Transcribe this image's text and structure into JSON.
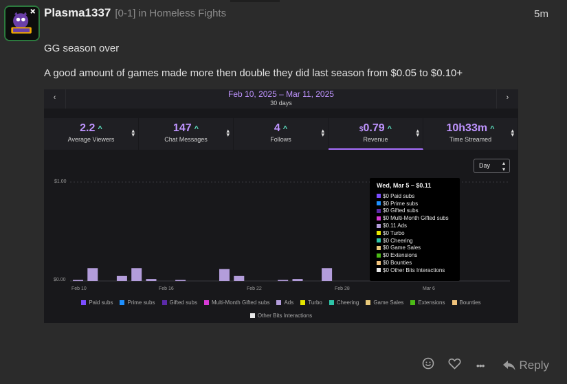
{
  "post": {
    "username": "Plasma1337",
    "flair": "[0-1] in Homeless Fights",
    "time": "5m",
    "paragraph1": "GG season over",
    "paragraph2": "A good amount of games made more then double they did last season from $0.05 to $0.10+"
  },
  "dashboard": {
    "date_range": "Feb 10, 2025 – Mar 11, 2025",
    "days": "30 days",
    "prev_icon": "chevron-left-icon",
    "next_icon": "chevron-right-icon",
    "stats": [
      {
        "value": "2.2",
        "currency": "",
        "label": "Average Viewers",
        "active": false
      },
      {
        "value": "147",
        "currency": "",
        "label": "Chat Messages",
        "active": false
      },
      {
        "value": "4",
        "currency": "",
        "label": "Follows",
        "active": false
      },
      {
        "value": "0.79",
        "currency": "$",
        "label": "Revenue",
        "active": true
      },
      {
        "value": "10h33m",
        "currency": "",
        "label": "Time Streamed",
        "active": false
      }
    ],
    "up_arrow": "^",
    "period_select": "Day"
  },
  "chart_data": {
    "type": "bar",
    "ylim": [
      0,
      1.0
    ],
    "y_ticks": [
      "$1.00",
      "$0.00"
    ],
    "x_ticks": [
      "Feb 10",
      "Feb 16",
      "Feb 22",
      "Feb 28",
      "Mar 6"
    ],
    "categories": [
      "Feb 10",
      "Feb 11",
      "Feb 12",
      "Feb 13",
      "Feb 14",
      "Feb 15",
      "Feb 16",
      "Feb 17",
      "Feb 18",
      "Feb 19",
      "Feb 20",
      "Feb 21",
      "Feb 22",
      "Feb 23",
      "Feb 24",
      "Feb 25",
      "Feb 26",
      "Feb 27",
      "Feb 28",
      "Mar 1",
      "Mar 2",
      "Mar 3",
      "Mar 4",
      "Mar 5",
      "Mar 6",
      "Mar 7",
      "Mar 8",
      "Mar 9",
      "Mar 10",
      "Mar 11"
    ],
    "series": [
      {
        "name": "Ads",
        "values": [
          0.01,
          0.13,
          0,
          0.05,
          0.13,
          0.02,
          0,
          0.01,
          0,
          0,
          0.12,
          0.05,
          0,
          0,
          0.01,
          0.02,
          0,
          0.13,
          0,
          0,
          0,
          0,
          0,
          0.11,
          0,
          0,
          0,
          0,
          0,
          0
        ]
      }
    ],
    "bar_color": "#b39ddb"
  },
  "tooltip": {
    "title": "Wed, Mar 5 – $0.11",
    "rows": [
      {
        "text": "$0 Paid subs",
        "color": "#7b4dff"
      },
      {
        "text": "$0 Prime subs",
        "color": "#1e90ff"
      },
      {
        "text": "$0 Gifted subs",
        "color": "#5b2aa8"
      },
      {
        "text": "$0 Multi-Month Gifted subs",
        "color": "#d63ad6"
      },
      {
        "text": "$0.11 Ads",
        "color": "#b39ddb"
      },
      {
        "text": "$0 Turbo",
        "color": "#e5e500"
      },
      {
        "text": "$0 Cheering",
        "color": "#2ec4a8"
      },
      {
        "text": "$0 Game Sales",
        "color": "#e8c97a"
      },
      {
        "text": "$0 Extensions",
        "color": "#4cbb17"
      },
      {
        "text": "$0 Bounties",
        "color": "#f0c27b"
      },
      {
        "text": "$0 Other Bits Interactions",
        "color": "#e8e8e8"
      }
    ]
  },
  "legend": {
    "row1": [
      {
        "label": "Paid subs",
        "color": "#7b4dff"
      },
      {
        "label": "Prime subs",
        "color": "#1e90ff"
      },
      {
        "label": "Gifted subs",
        "color": "#5b2aa8"
      },
      {
        "label": "Multi-Month Gifted subs",
        "color": "#d63ad6"
      },
      {
        "label": "Ads",
        "color": "#b39ddb"
      },
      {
        "label": "Turbo",
        "color": "#e5e500"
      },
      {
        "label": "Cheering",
        "color": "#2ec4a8"
      },
      {
        "label": "Game Sales",
        "color": "#e8c97a"
      },
      {
        "label": "Extensions",
        "color": "#4cbb17"
      },
      {
        "label": "Bounties",
        "color": "#f0c27b"
      }
    ],
    "row2": [
      {
        "label": "Other Bits Interactions",
        "color": "#e8e8e8"
      }
    ]
  },
  "actions": {
    "react_icon": "smiley-icon",
    "like_icon": "heart-icon",
    "more_icon": "more-dots-icon",
    "reply_icon": "reply-arrow-icon",
    "reply_label": "Reply",
    "more_label": "•••"
  }
}
